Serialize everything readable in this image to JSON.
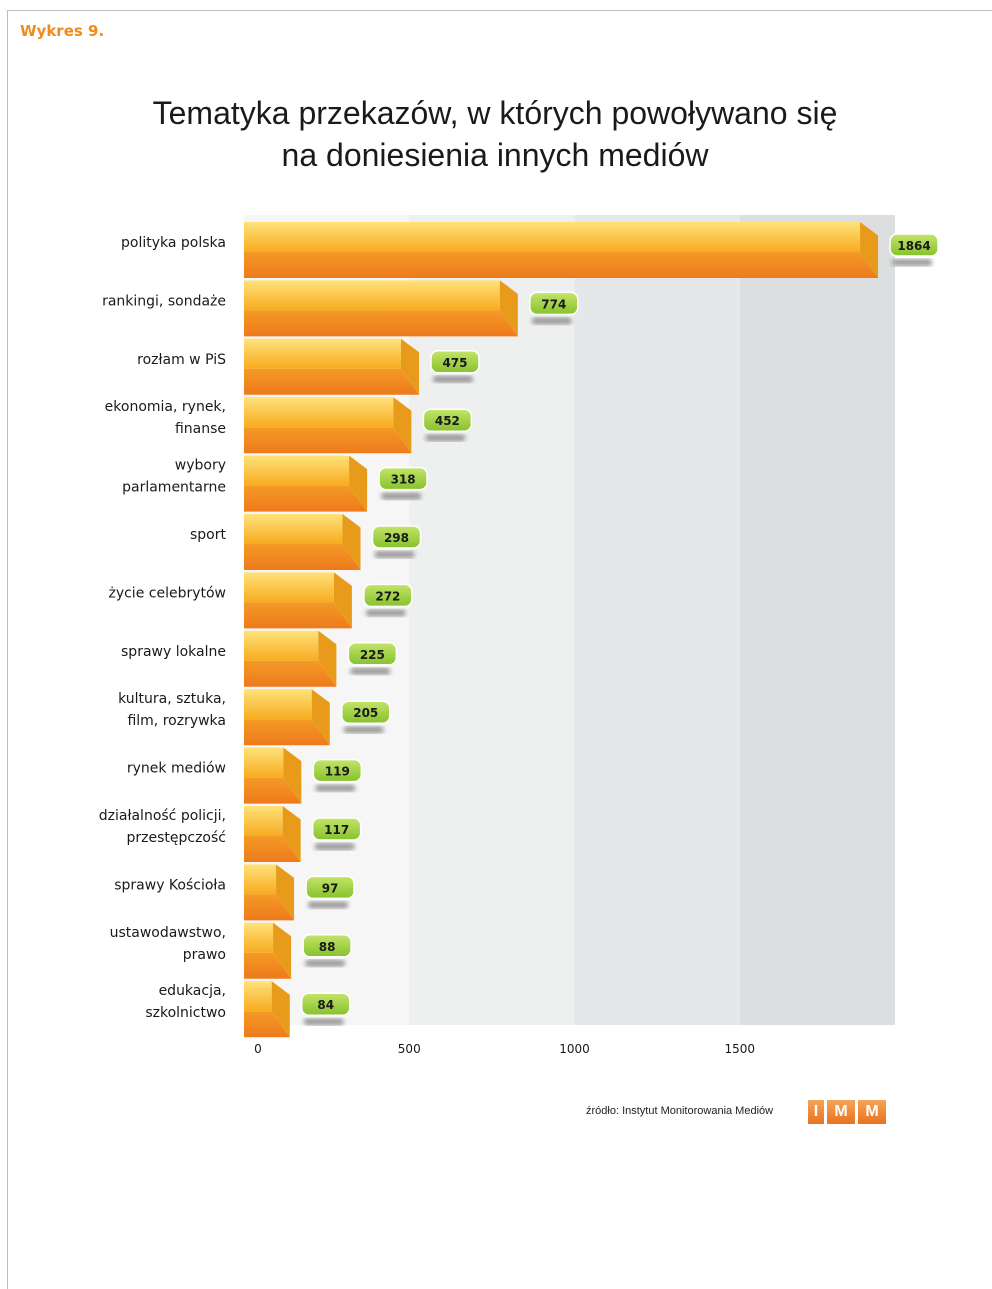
{
  "caption": "Wykres 9.",
  "title_line1": "Tematyka przekazów, w których powoływano się",
  "title_line2": "na doniesienia innych mediów",
  "source_text": "źródło: Instytut Monitorowania Mediów",
  "logo_letters": [
    "I",
    "M",
    "M"
  ],
  "colors": {
    "caption": "#f08a1c",
    "bar_front_top": "#ffd25c",
    "bar_front_bottom": "#f7a81b",
    "bar_bottom_face": "#f0801e",
    "bar_side": "#e38a16",
    "value_badge": "#9fd140",
    "zone_light": "#f4f4f4",
    "zone_mid": "#e9eaea",
    "zone_dark": "#dedfe0"
  },
  "chart_data": {
    "type": "bar",
    "orientation": "horizontal",
    "title": "Tematyka przekazów, w których powoływano się na doniesienia innych mediów",
    "categories": [
      [
        "polityka polska"
      ],
      [
        "rankingi, sondaże"
      ],
      [
        "rozłam w PiS"
      ],
      [
        "ekonomia, rynek,",
        "finanse"
      ],
      [
        "wybory",
        "parlamentarne"
      ],
      [
        "sport"
      ],
      [
        "życie celebrytów"
      ],
      [
        "sprawy lokalne"
      ],
      [
        "kultura, sztuka,",
        "film, rozrywka"
      ],
      [
        "rynek mediów"
      ],
      [
        "działalność policji,",
        "przestępczość"
      ],
      [
        "sprawy Kościoła"
      ],
      [
        "ustawodawstwo,",
        "prawo"
      ],
      [
        "edukacja,",
        "szkolnictwo"
      ]
    ],
    "values": [
      1864,
      774,
      475,
      452,
      318,
      298,
      272,
      225,
      205,
      119,
      117,
      97,
      88,
      84
    ],
    "xticks": [
      0,
      500,
      1000,
      1500
    ],
    "xlim": [
      0,
      1900
    ],
    "grid": false,
    "legend": "none"
  }
}
